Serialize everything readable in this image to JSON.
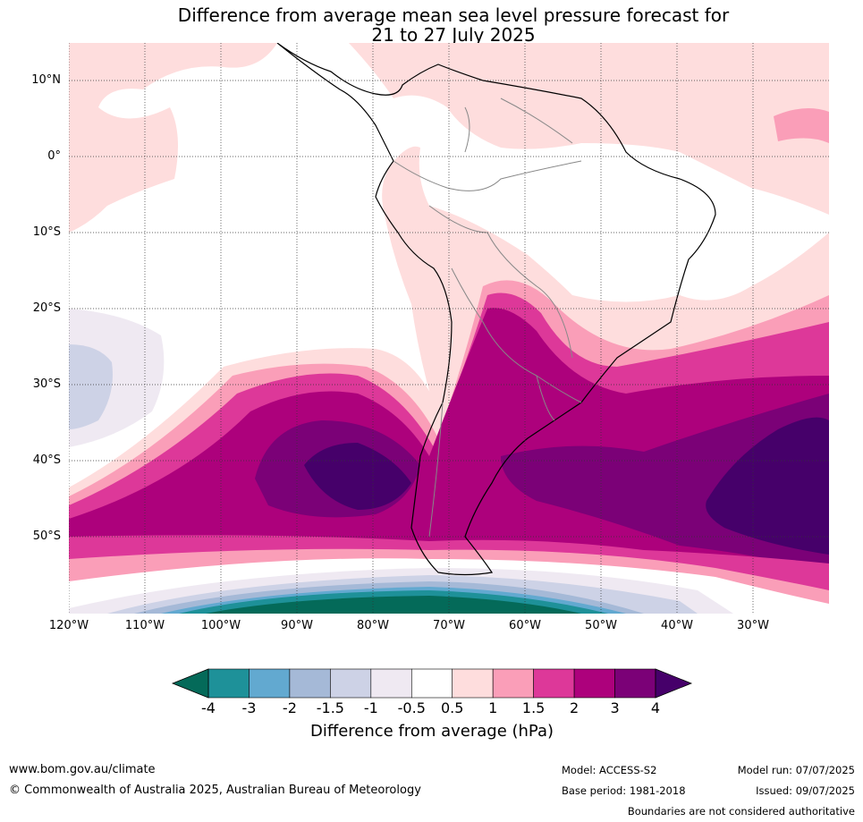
{
  "title_line1": "Difference from average mean sea level pressure forecast for",
  "title_line2": "21 to 27 July 2025",
  "map": {
    "lat_labels": [
      "10°N",
      "0°",
      "10°S",
      "20°S",
      "30°S",
      "40°S",
      "50°S"
    ],
    "lon_labels": [
      "120°W",
      "110°W",
      "100°W",
      "90°W",
      "80°W",
      "70°W",
      "60°W",
      "50°W",
      "40°W",
      "30°W"
    ],
    "gridlines": true,
    "extent": {
      "lon_min": -120,
      "lon_max": -20,
      "lat_min": -60,
      "lat_max": 15
    }
  },
  "colorbar": {
    "ticks": [
      "-4",
      "-3",
      "-2",
      "-1.5",
      "-1",
      "-0.5",
      "0.5",
      "1",
      "1.5",
      "2",
      "3",
      "4"
    ],
    "colors": [
      "#046a59",
      "#1e9199",
      "#62a9d0",
      "#a5b9d7",
      "#cdd2e6",
      "#efe9f2",
      "#ffffff",
      "#fedddd",
      "#fa9eb8",
      "#dd3899",
      "#ad017c",
      "#7b0177",
      "#46006a"
    ],
    "label": "Difference from average (hPa)"
  },
  "footer": {
    "website": "www.bom.gov.au/climate",
    "copyright": "© Commonwealth of Australia 2025, Australian Bureau of Meteorology",
    "model": "Model: ACCESS-S2",
    "base_period": "Base period: 1981-2018",
    "model_run": "Model run: 07/07/2025",
    "issued": "Issued: 09/07/2025",
    "disclaimer": "Boundaries are not considered authoritative"
  }
}
